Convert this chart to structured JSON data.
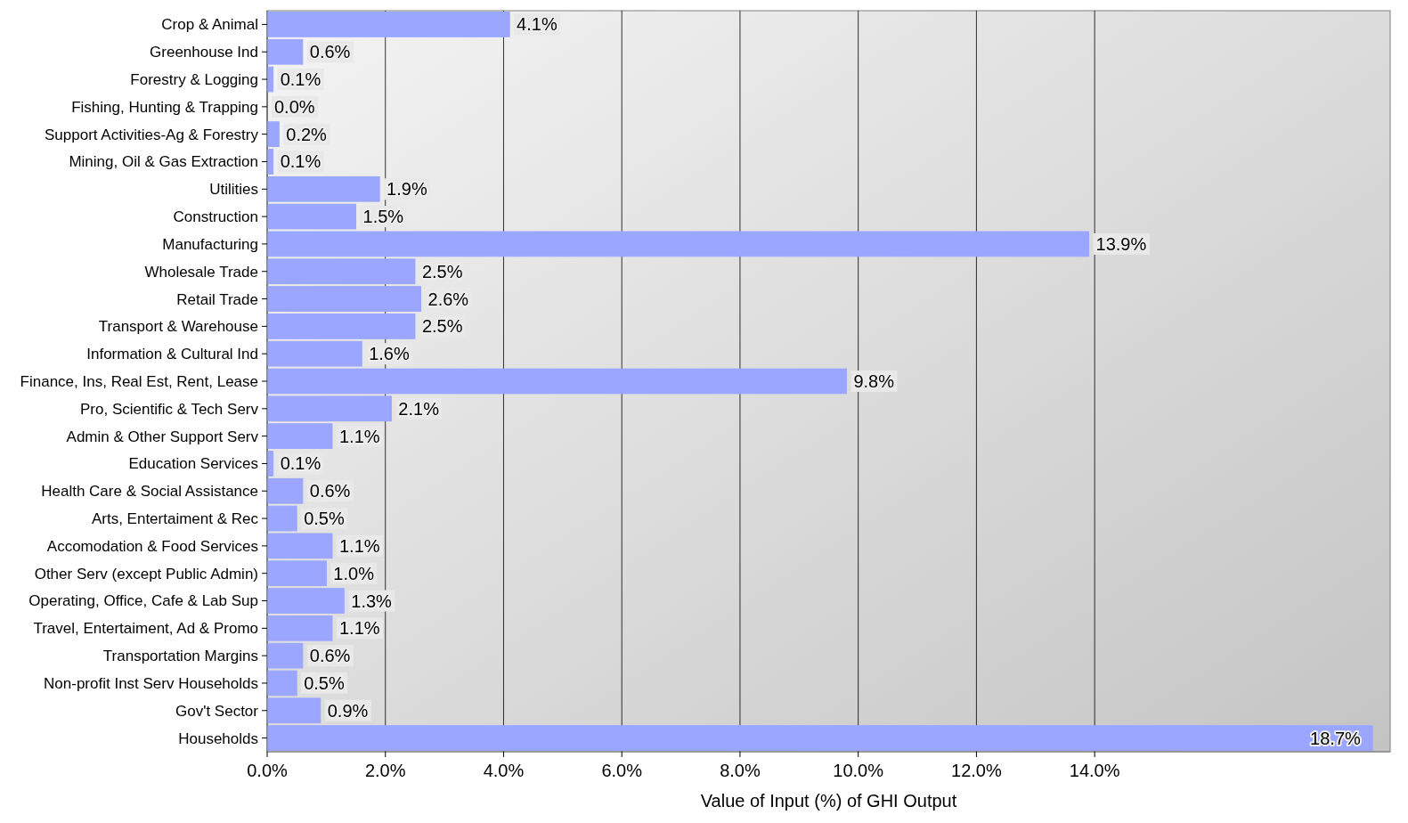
{
  "chart_data": {
    "type": "bar",
    "orientation": "horizontal",
    "xlabel": "Value of Input (%) of GHI Output",
    "categories": [
      "Crop & Animal",
      "Greenhouse Ind",
      "Forestry & Logging",
      "Fishing, Hunting & Trapping",
      "Support Activities-Ag & Forestry",
      "Mining, Oil & Gas Extraction",
      "Utilities",
      "Construction",
      "Manufacturing",
      "Wholesale Trade",
      "Retail Trade",
      "Transport & Warehouse",
      "Information & Cultural Ind",
      "Finance, Ins, Real Est, Rent, Lease",
      "Pro, Scientific & Tech Serv",
      "Admin & Other Support Serv",
      "Education Services",
      "Health Care & Social Assistance",
      "Arts, Entertaiment & Rec",
      "Accomodation & Food Services",
      "Other Serv (except Public Admin)",
      "Operating, Office, Cafe & Lab Sup",
      "Travel, Entertaiment, Ad & Promo",
      "Transportation Margins",
      "Non-profit Inst Serv Households",
      "Gov't Sector",
      "Households"
    ],
    "values": [
      4.1,
      0.6,
      0.1,
      0.0,
      0.2,
      0.1,
      1.9,
      1.5,
      13.9,
      2.5,
      2.6,
      2.5,
      1.6,
      9.8,
      2.1,
      1.1,
      0.1,
      0.6,
      0.5,
      1.1,
      1.0,
      1.3,
      1.1,
      0.6,
      0.5,
      0.9,
      18.7
    ],
    "value_labels": [
      "4.1%",
      "0.6%",
      "0.1%",
      "0.0%",
      "0.2%",
      "0.1%",
      "1.9%",
      "1.5%",
      "13.9%",
      "2.5%",
      "2.6%",
      "2.5%",
      "1.6%",
      "9.8%",
      "2.1%",
      "1.1%",
      "0.1%",
      "0.6%",
      "0.5%",
      "1.1%",
      "1.0%",
      "1.3%",
      "1.1%",
      "0.6%",
      "0.5%",
      "0.9%",
      "18.7%"
    ],
    "color": "#9aa6ff",
    "xlim": [
      0,
      19
    ],
    "xticks": [
      {
        "value": 0,
        "label": "0.0%"
      },
      {
        "value": 2,
        "label": "2.0%"
      },
      {
        "value": 4,
        "label": "4.0%"
      },
      {
        "value": 6,
        "label": "6.0%"
      },
      {
        "value": 8,
        "label": "8.0%"
      },
      {
        "value": 10,
        "label": "10.0%"
      },
      {
        "value": 12,
        "label": "12.0%"
      },
      {
        "value": 14,
        "label": "14.0%"
      }
    ],
    "grid": "x"
  }
}
